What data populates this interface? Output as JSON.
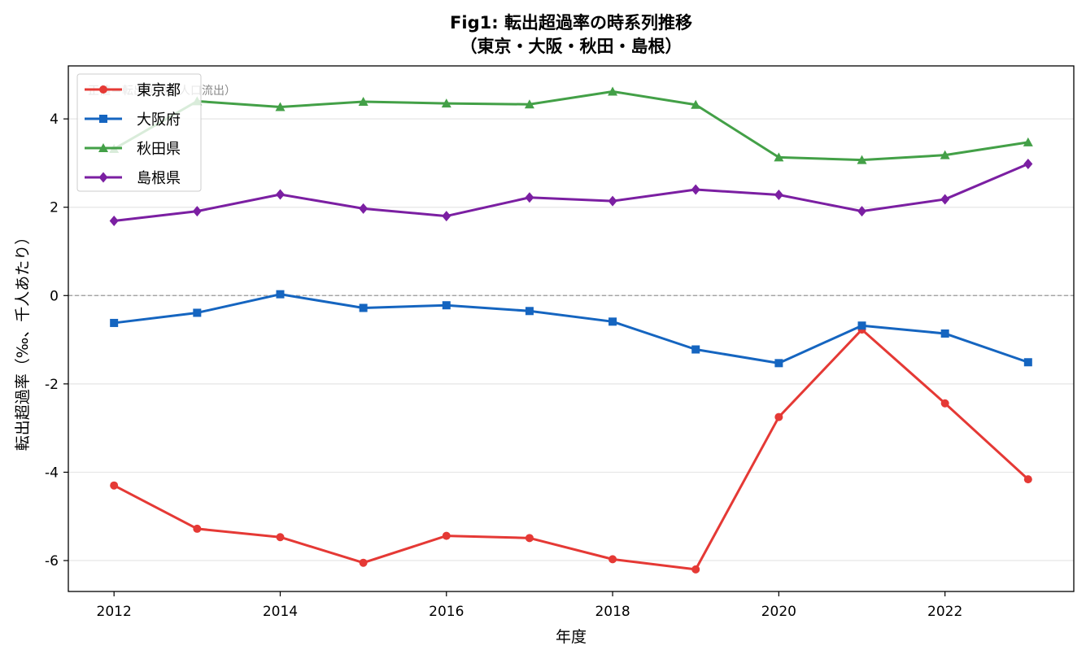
{
  "chart_data": {
    "type": "line",
    "title_line1": "Fig1: 転出超過率の時系列推移",
    "title_line2": "（東京・大阪・秋田・島根）",
    "xlabel": "年度",
    "ylabel": "転出超過率（‰、千人あたり）",
    "annotation": "正値＝転出超過（人口流出）",
    "x": [
      2012,
      2013,
      2014,
      2015,
      2016,
      2017,
      2018,
      2019,
      2020,
      2021,
      2022,
      2023
    ],
    "xticks": [
      2012,
      2014,
      2016,
      2018,
      2020,
      2022
    ],
    "yticks": [
      -6,
      -4,
      -2,
      0,
      2,
      4
    ],
    "xlim": [
      2011.45,
      2023.55
    ],
    "ylim": [
      -6.7,
      5.2
    ],
    "grid": "horizontal",
    "reference_line": 0,
    "legend_position": "upper-left",
    "series": [
      {
        "name": "東京都",
        "color": "#e53935",
        "marker": "circle",
        "values": [
          -4.3,
          -5.28,
          -5.47,
          -6.05,
          -5.44,
          -5.49,
          -5.97,
          -6.2,
          -2.75,
          -0.77,
          -2.44,
          -4.16
        ]
      },
      {
        "name": "大阪府",
        "color": "#1565c0",
        "marker": "square",
        "values": [
          -0.62,
          -0.39,
          0.03,
          -0.28,
          -0.22,
          -0.35,
          -0.59,
          -1.22,
          -1.53,
          -0.68,
          -0.86,
          -1.51
        ]
      },
      {
        "name": "秋田県",
        "color": "#43a047",
        "marker": "triangle",
        "values": [
          3.32,
          4.4,
          4.27,
          4.39,
          4.35,
          4.33,
          4.62,
          4.32,
          3.13,
          3.07,
          3.18,
          3.47
        ]
      },
      {
        "name": "島根県",
        "color": "#7b1fa2",
        "marker": "diamond",
        "values": [
          1.69,
          1.91,
          2.29,
          1.97,
          1.8,
          2.22,
          2.14,
          2.4,
          2.28,
          1.91,
          2.18,
          2.98
        ]
      }
    ]
  }
}
